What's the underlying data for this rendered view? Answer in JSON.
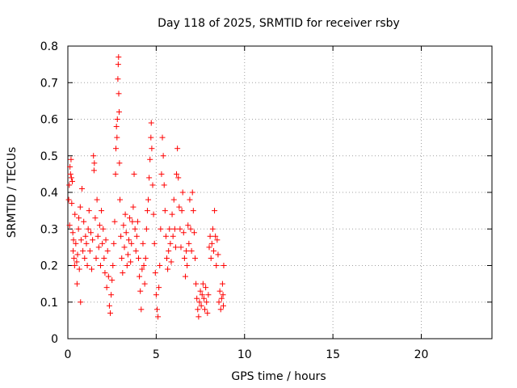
{
  "chart_data": {
    "type": "scatter",
    "title": "Day 118 of 2025, SRMTID for receiver rsby",
    "xlabel": "GPS time / hours",
    "ylabel": "SRMTID / TECUs",
    "xlim": [
      0,
      24
    ],
    "ylim": [
      0,
      0.8
    ],
    "x_ticks": [
      0,
      5,
      10,
      15,
      20
    ],
    "y_ticks": [
      0,
      0.1,
      0.2,
      0.3,
      0.4,
      0.5,
      0.6,
      0.7,
      0.8
    ],
    "x_tick_labels": [
      "0",
      "5",
      "10",
      "15",
      "20"
    ],
    "y_tick_labels": [
      "0",
      "0.1",
      "0.2",
      "0.3",
      "0.4",
      "0.5",
      "0.6",
      "0.7",
      "0.8"
    ],
    "grid": true,
    "marker": "plus",
    "color": "#ff0000",
    "series": [
      {
        "name": "SRMTID",
        "points": [
          [
            0.05,
            0.38
          ],
          [
            0.08,
            0.42
          ],
          [
            0.1,
            0.31
          ],
          [
            0.12,
            0.47
          ],
          [
            0.15,
            0.45
          ],
          [
            0.18,
            0.49
          ],
          [
            0.2,
            0.44
          ],
          [
            0.22,
            0.37
          ],
          [
            0.25,
            0.43
          ],
          [
            0.28,
            0.29
          ],
          [
            0.3,
            0.24
          ],
          [
            0.32,
            0.27
          ],
          [
            0.35,
            0.22
          ],
          [
            0.38,
            0.2
          ],
          [
            0.4,
            0.34
          ],
          [
            0.45,
            0.26
          ],
          [
            0.5,
            0.21
          ],
          [
            0.52,
            0.15
          ],
          [
            0.55,
            0.23
          ],
          [
            0.6,
            0.3
          ],
          [
            0.62,
            0.33
          ],
          [
            0.65,
            0.19
          ],
          [
            0.7,
            0.36
          ],
          [
            0.72,
            0.1
          ],
          [
            0.75,
            0.27
          ],
          [
            0.8,
            0.41
          ],
          [
            0.85,
            0.24
          ],
          [
            0.9,
            0.32
          ],
          [
            0.95,
            0.22
          ],
          [
            1.0,
            0.28
          ],
          [
            1.05,
            0.26
          ],
          [
            1.1,
            0.2
          ],
          [
            1.15,
            0.3
          ],
          [
            1.2,
            0.35
          ],
          [
            1.25,
            0.24
          ],
          [
            1.3,
            0.29
          ],
          [
            1.35,
            0.19
          ],
          [
            1.4,
            0.27
          ],
          [
            1.45,
            0.5
          ],
          [
            1.48,
            0.46
          ],
          [
            1.5,
            0.48
          ],
          [
            1.55,
            0.33
          ],
          [
            1.6,
            0.22
          ],
          [
            1.65,
            0.38
          ],
          [
            1.7,
            0.28
          ],
          [
            1.75,
            0.25
          ],
          [
            1.8,
            0.31
          ],
          [
            1.85,
            0.2
          ],
          [
            1.9,
            0.35
          ],
          [
            1.95,
            0.26
          ],
          [
            2.0,
            0.3
          ],
          [
            2.05,
            0.22
          ],
          [
            2.1,
            0.18
          ],
          [
            2.15,
            0.27
          ],
          [
            2.2,
            0.14
          ],
          [
            2.25,
            0.24
          ],
          [
            2.3,
            0.17
          ],
          [
            2.35,
            0.09
          ],
          [
            2.4,
            0.07
          ],
          [
            2.45,
            0.12
          ],
          [
            2.5,
            0.16
          ],
          [
            2.55,
            0.2
          ],
          [
            2.6,
            0.26
          ],
          [
            2.65,
            0.32
          ],
          [
            2.7,
            0.45
          ],
          [
            2.72,
            0.52
          ],
          [
            2.75,
            0.58
          ],
          [
            2.78,
            0.55
          ],
          [
            2.8,
            0.6
          ],
          [
            2.83,
            0.71
          ],
          [
            2.85,
            0.75
          ],
          [
            2.87,
            0.77
          ],
          [
            2.88,
            0.67
          ],
          [
            2.9,
            0.62
          ],
          [
            2.92,
            0.48
          ],
          [
            2.95,
            0.38
          ],
          [
            3.0,
            0.28
          ],
          [
            3.05,
            0.22
          ],
          [
            3.1,
            0.18
          ],
          [
            3.15,
            0.31
          ],
          [
            3.2,
            0.25
          ],
          [
            3.25,
            0.34
          ],
          [
            3.3,
            0.29
          ],
          [
            3.35,
            0.2
          ],
          [
            3.4,
            0.23
          ],
          [
            3.45,
            0.27
          ],
          [
            3.5,
            0.33
          ],
          [
            3.55,
            0.21
          ],
          [
            3.6,
            0.26
          ],
          [
            3.65,
            0.32
          ],
          [
            3.7,
            0.36
          ],
          [
            3.75,
            0.45
          ],
          [
            3.8,
            0.3
          ],
          [
            3.85,
            0.24
          ],
          [
            3.9,
            0.28
          ],
          [
            3.95,
            0.32
          ],
          [
            4.0,
            0.22
          ],
          [
            4.05,
            0.17
          ],
          [
            4.1,
            0.13
          ],
          [
            4.15,
            0.08
          ],
          [
            4.2,
            0.19
          ],
          [
            4.25,
            0.26
          ],
          [
            4.3,
            0.2
          ],
          [
            4.35,
            0.15
          ],
          [
            4.4,
            0.22
          ],
          [
            4.45,
            0.3
          ],
          [
            4.5,
            0.35
          ],
          [
            4.55,
            0.38
          ],
          [
            4.6,
            0.44
          ],
          [
            4.65,
            0.49
          ],
          [
            4.7,
            0.55
          ],
          [
            4.72,
            0.59
          ],
          [
            4.75,
            0.52
          ],
          [
            4.8,
            0.42
          ],
          [
            4.85,
            0.34
          ],
          [
            4.9,
            0.26
          ],
          [
            4.95,
            0.18
          ],
          [
            5.0,
            0.12
          ],
          [
            5.05,
            0.08
          ],
          [
            5.1,
            0.06
          ],
          [
            5.15,
            0.14
          ],
          [
            5.2,
            0.2
          ],
          [
            5.25,
            0.3
          ],
          [
            5.3,
            0.45
          ],
          [
            5.35,
            0.55
          ],
          [
            5.4,
            0.5
          ],
          [
            5.45,
            0.42
          ],
          [
            5.5,
            0.35
          ],
          [
            5.55,
            0.28
          ],
          [
            5.6,
            0.22
          ],
          [
            5.65,
            0.19
          ],
          [
            5.7,
            0.24
          ],
          [
            5.75,
            0.3
          ],
          [
            5.8,
            0.26
          ],
          [
            5.85,
            0.21
          ],
          [
            5.9,
            0.34
          ],
          [
            5.95,
            0.28
          ],
          [
            6.0,
            0.38
          ],
          [
            6.05,
            0.3
          ],
          [
            6.1,
            0.25
          ],
          [
            6.15,
            0.45
          ],
          [
            6.2,
            0.52
          ],
          [
            6.25,
            0.44
          ],
          [
            6.3,
            0.36
          ],
          [
            6.35,
            0.3
          ],
          [
            6.4,
            0.25
          ],
          [
            6.45,
            0.35
          ],
          [
            6.5,
            0.4
          ],
          [
            6.55,
            0.29
          ],
          [
            6.6,
            0.22
          ],
          [
            6.65,
            0.17
          ],
          [
            6.7,
            0.24
          ],
          [
            6.75,
            0.2
          ],
          [
            6.8,
            0.31
          ],
          [
            6.85,
            0.26
          ],
          [
            6.9,
            0.38
          ],
          [
            6.95,
            0.3
          ],
          [
            7.0,
            0.24
          ],
          [
            7.05,
            0.4
          ],
          [
            7.1,
            0.35
          ],
          [
            7.15,
            0.29
          ],
          [
            7.2,
            0.22
          ],
          [
            7.25,
            0.15
          ],
          [
            7.3,
            0.11
          ],
          [
            7.35,
            0.08
          ],
          [
            7.4,
            0.06
          ],
          [
            7.45,
            0.1
          ],
          [
            7.5,
            0.13
          ],
          [
            7.55,
            0.09
          ],
          [
            7.6,
            0.12
          ],
          [
            7.65,
            0.15
          ],
          [
            7.7,
            0.11
          ],
          [
            7.75,
            0.08
          ],
          [
            7.8,
            0.14
          ],
          [
            7.85,
            0.1
          ],
          [
            7.9,
            0.07
          ],
          [
            7.95,
            0.12
          ],
          [
            8.0,
            0.25
          ],
          [
            8.05,
            0.28
          ],
          [
            8.1,
            0.22
          ],
          [
            8.15,
            0.26
          ],
          [
            8.2,
            0.3
          ],
          [
            8.25,
            0.24
          ],
          [
            8.3,
            0.35
          ],
          [
            8.35,
            0.28
          ],
          [
            8.4,
            0.2
          ],
          [
            8.45,
            0.27
          ],
          [
            8.5,
            0.23
          ],
          [
            8.55,
            0.1
          ],
          [
            8.6,
            0.13
          ],
          [
            8.65,
            0.08
          ],
          [
            8.7,
            0.11
          ],
          [
            8.75,
            0.15
          ],
          [
            8.78,
            0.12
          ],
          [
            8.8,
            0.09
          ],
          [
            8.82,
            0.2
          ]
        ]
      }
    ]
  }
}
